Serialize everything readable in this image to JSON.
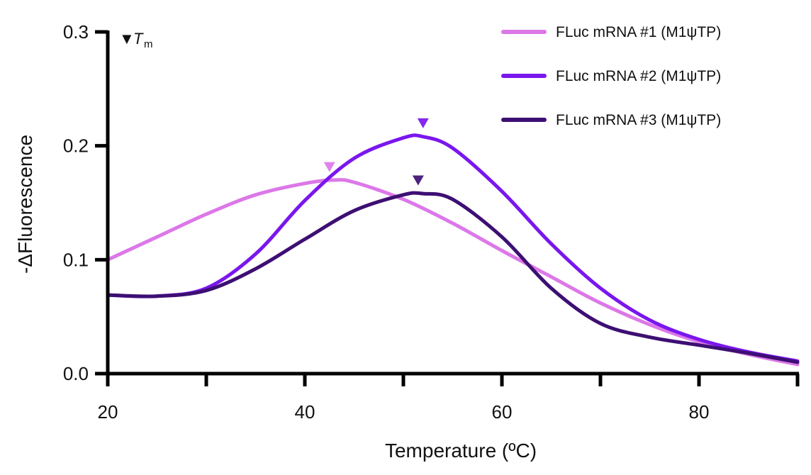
{
  "chart_data": {
    "type": "line",
    "title": "",
    "xlabel": "Temperature (ºC)",
    "ylabel": "-ΔFluorescence",
    "xlim": [
      20,
      90
    ],
    "ylim": [
      0,
      0.3
    ],
    "xticks": [
      20,
      30,
      40,
      50,
      60,
      70,
      80,
      90
    ],
    "xtick_labels": [
      "20",
      "",
      "40",
      "",
      "60",
      "",
      "80",
      ""
    ],
    "yticks": [
      0,
      0.1,
      0.2,
      0.3
    ],
    "ytick_labels": [
      "0.0",
      "0.1",
      "0.2",
      "0.3"
    ],
    "grid": false,
    "legend_position": "top-right",
    "tm_marker_label": "▼",
    "tm_symbol": "T",
    "tm_subscript": "m",
    "series": [
      {
        "name": "FLuc mRNA #1 (M1ψTP)",
        "color": "#dc78e8",
        "x": [
          20,
          25,
          30,
          35,
          40,
          43,
          45,
          50,
          55,
          60,
          65,
          70,
          75,
          80,
          85,
          90
        ],
        "y": [
          0.1,
          0.12,
          0.14,
          0.157,
          0.167,
          0.17,
          0.168,
          0.153,
          0.132,
          0.108,
          0.085,
          0.062,
          0.043,
          0.028,
          0.017,
          0.008
        ],
        "tm": 42.5
      },
      {
        "name": "FLuc mRNA #2 (M1ψTP)",
        "color": "#7a16ee",
        "x": [
          20,
          25,
          30,
          35,
          40,
          45,
          50,
          52,
          55,
          60,
          65,
          70,
          75,
          80,
          85,
          90
        ],
        "y": [
          0.069,
          0.068,
          0.075,
          0.105,
          0.152,
          0.189,
          0.207,
          0.208,
          0.198,
          0.16,
          0.114,
          0.075,
          0.047,
          0.03,
          0.019,
          0.011
        ],
        "tm": 52
      },
      {
        "name": "FLuc mRNA #3 (M1ψTP)",
        "color": "#3d0f73",
        "x": [
          20,
          25,
          30,
          35,
          40,
          45,
          50,
          52,
          55,
          60,
          65,
          70,
          75,
          80,
          85,
          90
        ],
        "y": [
          0.069,
          0.068,
          0.073,
          0.092,
          0.118,
          0.143,
          0.157,
          0.158,
          0.153,
          0.12,
          0.075,
          0.044,
          0.032,
          0.025,
          0.018,
          0.01
        ],
        "tm": 51.5
      }
    ]
  }
}
